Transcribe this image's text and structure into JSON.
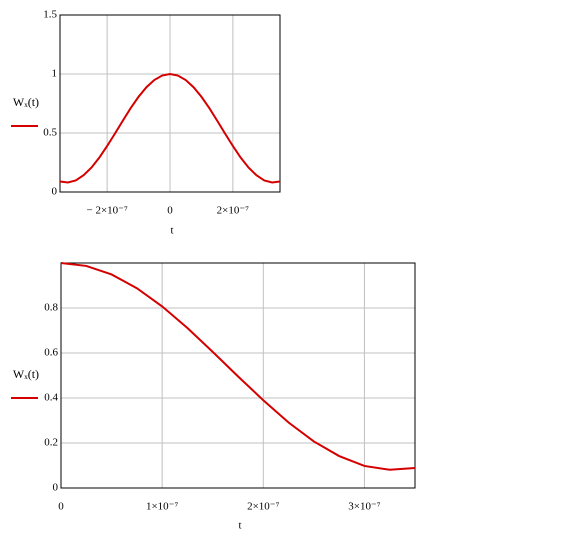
{
  "chart_data": [
    {
      "type": "line",
      "ylabel": "Wₓ(t)",
      "xlabel": "t",
      "color": "#d40000",
      "grid": true,
      "xlim": [
        -3.5e-07,
        3.5e-07
      ],
      "ylim": [
        0,
        1.5
      ],
      "xticks": [
        {
          "value": -2e-07,
          "label": "− 2×10⁻⁷"
        },
        0,
        {
          "value": 2e-07,
          "label": "2×10⁻⁷"
        }
      ],
      "yticks": [
        0,
        0.5,
        1,
        1.5
      ],
      "x": [
        -3.5e-07,
        -3.25e-07,
        -3e-07,
        -2.75e-07,
        -2.5e-07,
        -2.25e-07,
        -2e-07,
        -1.75e-07,
        -1.5e-07,
        -1.25e-07,
        -1e-07,
        -7.5e-08,
        -5e-08,
        -2.5e-08,
        0,
        2.5e-08,
        5e-08,
        7.5e-08,
        1e-07,
        1.25e-07,
        1.5e-07,
        1.75e-07,
        2e-07,
        2.25e-07,
        2.5e-07,
        2.75e-07,
        3e-07,
        3.25e-07,
        3.5e-07
      ],
      "values": [
        0.089,
        0.081,
        0.098,
        0.142,
        0.207,
        0.291,
        0.39,
        0.496,
        0.605,
        0.711,
        0.807,
        0.888,
        0.949,
        0.987,
        1,
        0.987,
        0.949,
        0.888,
        0.807,
        0.711,
        0.605,
        0.496,
        0.39,
        0.291,
        0.207,
        0.142,
        0.098,
        0.081,
        0.089
      ]
    },
    {
      "type": "line",
      "ylabel": "Wₓ(t)",
      "xlabel": "t",
      "color": "#d40000",
      "grid": true,
      "xlim": [
        0,
        3.5e-07
      ],
      "ylim": [
        0,
        1
      ],
      "xticks": [
        0,
        {
          "value": 1e-07,
          "label": "1×10⁻⁷"
        },
        {
          "value": 2e-07,
          "label": "2×10⁻⁷"
        },
        {
          "value": 3e-07,
          "label": "3×10⁻⁷"
        }
      ],
      "yticks": [
        0,
        0.2,
        0.4,
        0.6,
        0.8
      ],
      "x": [
        0,
        2.5e-08,
        5e-08,
        7.5e-08,
        1e-07,
        1.25e-07,
        1.5e-07,
        1.75e-07,
        2e-07,
        2.25e-07,
        2.5e-07,
        2.75e-07,
        3e-07,
        3.25e-07,
        3.5e-07
      ],
      "values": [
        1,
        0.987,
        0.949,
        0.888,
        0.807,
        0.711,
        0.605,
        0.496,
        0.39,
        0.291,
        0.207,
        0.142,
        0.098,
        0.081,
        0.089
      ]
    }
  ]
}
